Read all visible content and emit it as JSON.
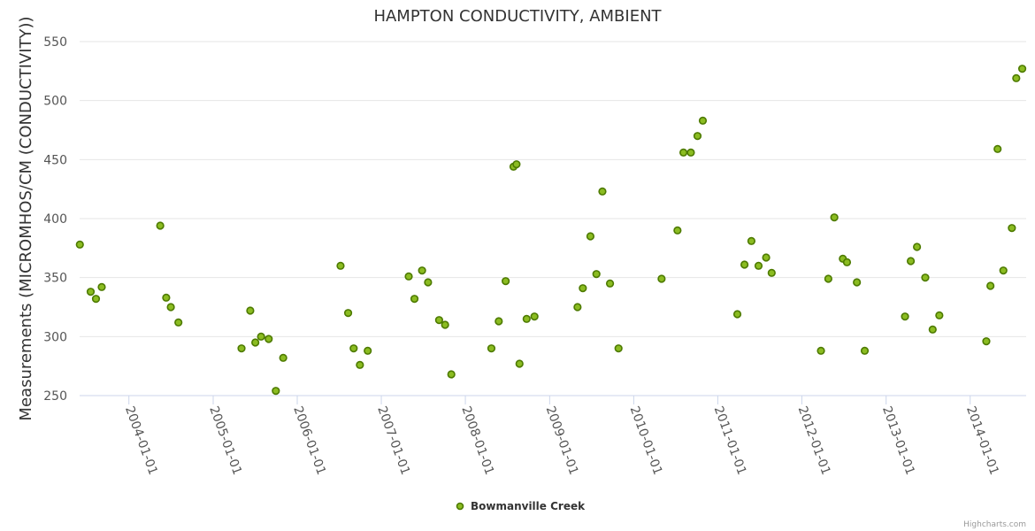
{
  "chart_data": {
    "type": "scatter",
    "title": "HAMPTON CONDUCTIVITY, AMBIENT",
    "ylabel": "Measurements (MICROMHOS/CM (CONDUCTIVITY))",
    "xlabel": "",
    "ylim": [
      250,
      550
    ],
    "yticks": [
      250,
      300,
      350,
      400,
      450,
      500,
      550
    ],
    "xlim": [
      "2003-06-01",
      "2014-09-01"
    ],
    "xticks": [
      "2004-01-01",
      "2005-01-01",
      "2006-01-01",
      "2007-01-01",
      "2008-01-01",
      "2009-01-01",
      "2010-01-01",
      "2011-01-01",
      "2012-01-01",
      "2013-01-01",
      "2014-01-01"
    ],
    "grid": true,
    "legend": "bottom-center",
    "series": [
      {
        "name": "Bowmanville Creek",
        "color": "#7cb342",
        "marker_fill": "#8bbc21",
        "marker_stroke": "#4d7a00",
        "points": [
          [
            "2003-06-02",
            378
          ],
          [
            "2003-07-19",
            338
          ],
          [
            "2003-08-11",
            332
          ],
          [
            "2003-09-05",
            342
          ],
          [
            "2004-05-16",
            394
          ],
          [
            "2004-06-11",
            333
          ],
          [
            "2004-07-01",
            325
          ],
          [
            "2004-08-03",
            312
          ],
          [
            "2005-05-04",
            290
          ],
          [
            "2005-06-11",
            322
          ],
          [
            "2005-07-03",
            295
          ],
          [
            "2005-07-28",
            300
          ],
          [
            "2005-08-30",
            298
          ],
          [
            "2005-09-30",
            254
          ],
          [
            "2005-11-01",
            282
          ],
          [
            "2006-07-08",
            360
          ],
          [
            "2006-08-10",
            320
          ],
          [
            "2006-09-03",
            290
          ],
          [
            "2006-09-30",
            276
          ],
          [
            "2006-11-03",
            288
          ],
          [
            "2007-04-30",
            351
          ],
          [
            "2007-05-25",
            332
          ],
          [
            "2007-06-27",
            356
          ],
          [
            "2007-07-23",
            346
          ],
          [
            "2007-09-09",
            314
          ],
          [
            "2007-10-05",
            310
          ],
          [
            "2007-11-01",
            268
          ],
          [
            "2008-04-23",
            290
          ],
          [
            "2008-05-25",
            313
          ],
          [
            "2008-06-24",
            347
          ],
          [
            "2008-07-28",
            444
          ],
          [
            "2008-08-10",
            446
          ],
          [
            "2008-08-23",
            277
          ],
          [
            "2008-09-23",
            315
          ],
          [
            "2008-10-27",
            317
          ],
          [
            "2009-05-02",
            325
          ],
          [
            "2009-05-25",
            341
          ],
          [
            "2009-06-27",
            385
          ],
          [
            "2009-07-23",
            353
          ],
          [
            "2009-08-18",
            423
          ],
          [
            "2009-09-20",
            345
          ],
          [
            "2009-10-27",
            290
          ],
          [
            "2010-05-02",
            349
          ],
          [
            "2010-07-10",
            390
          ],
          [
            "2010-08-05",
            456
          ],
          [
            "2010-09-06",
            456
          ],
          [
            "2010-10-05",
            470
          ],
          [
            "2010-10-28",
            483
          ],
          [
            "2011-03-27",
            319
          ],
          [
            "2011-04-27",
            361
          ],
          [
            "2011-05-27",
            381
          ],
          [
            "2011-06-27",
            360
          ],
          [
            "2011-07-30",
            367
          ],
          [
            "2011-08-23",
            354
          ],
          [
            "2012-03-24",
            288
          ],
          [
            "2012-04-25",
            349
          ],
          [
            "2012-05-21",
            401
          ],
          [
            "2012-06-27",
            366
          ],
          [
            "2012-07-15",
            363
          ],
          [
            "2012-08-27",
            346
          ],
          [
            "2012-09-30",
            288
          ],
          [
            "2013-03-24",
            317
          ],
          [
            "2013-04-18",
            364
          ],
          [
            "2013-05-15",
            376
          ],
          [
            "2013-06-20",
            350
          ],
          [
            "2013-07-22",
            306
          ],
          [
            "2013-08-20",
            318
          ],
          [
            "2014-03-12",
            296
          ],
          [
            "2014-03-30",
            343
          ],
          [
            "2014-04-30",
            459
          ],
          [
            "2014-05-25",
            356
          ],
          [
            "2014-07-01",
            392
          ],
          [
            "2014-07-20",
            519
          ],
          [
            "2014-08-15",
            527
          ]
        ]
      }
    ],
    "credits": "Highcharts.com"
  }
}
